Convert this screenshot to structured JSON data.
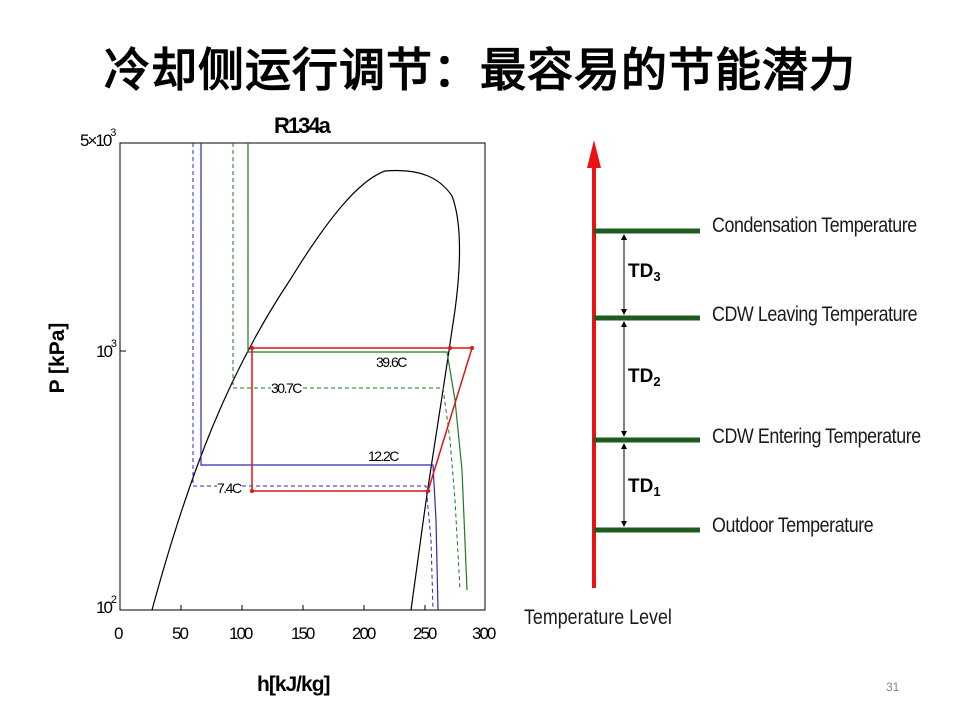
{
  "slide": {
    "title": "冷却侧运行调节：最容易的节能潜力",
    "page_number": "31"
  },
  "ph_diagram": {
    "title": "R134a",
    "xlabel": "h[kJ/kg]",
    "ylabel": "P [kPa]",
    "x_ticks": [
      "0",
      "50",
      "100",
      "150",
      "200",
      "250",
      "300"
    ],
    "y_ticks": [
      {
        "base": "5×10",
        "exp": "3"
      },
      {
        "base": "10",
        "exp": "3"
      },
      {
        "base": "10",
        "exp": "2"
      }
    ],
    "labels": {
      "t_396": "39.6C",
      "t_307": "30.7C",
      "t_122": "12.2C",
      "t_74": "7.4C"
    },
    "colors": {
      "green": "#1e7a1e",
      "blue": "#2a2ab8",
      "red": "#e01414"
    }
  },
  "temperature_levels": {
    "axis_title": "Temperature Level",
    "levels": [
      "Condensation Temperature",
      "CDW Leaving Temperature",
      "CDW Entering Temperature",
      "Outdoor Temperature"
    ],
    "differences": [
      {
        "base": "TD",
        "sub": "3"
      },
      {
        "base": "TD",
        "sub": "2"
      },
      {
        "base": "TD",
        "sub": "1"
      }
    ],
    "colors": {
      "arrow": "#ee1111",
      "level_line": "#1f5a1f"
    }
  }
}
